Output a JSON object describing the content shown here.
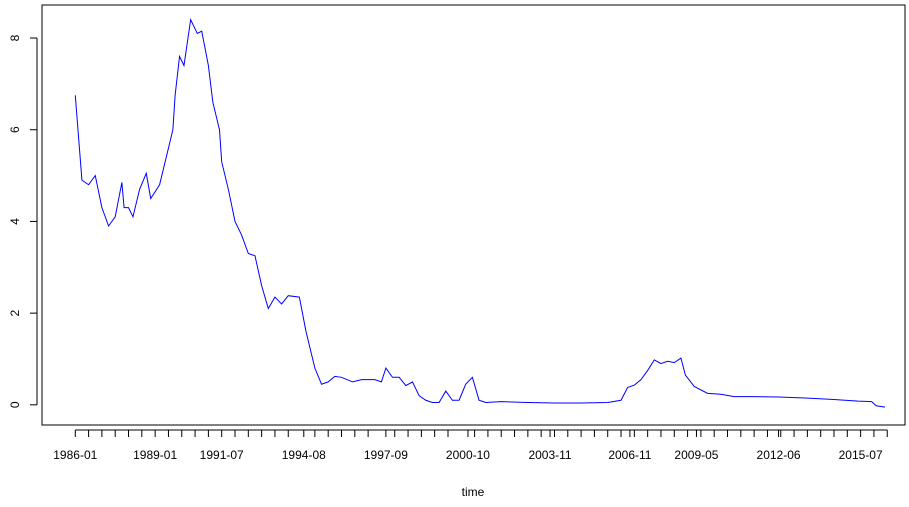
{
  "chart_data": {
    "type": "line",
    "x_label": "time",
    "color": "#0000ff",
    "xlim": [
      "1984-10",
      "2017-03"
    ],
    "ylim": [
      -0.44,
      8.72
    ],
    "yticks": [
      0,
      2,
      4,
      6,
      8
    ],
    "xticks": [
      "1986-01",
      "1989-01",
      "1991-07",
      "1994-08",
      "1997-09",
      "2000-10",
      "2003-11",
      "2006-11",
      "2009-05",
      "2012-06",
      "2015-07"
    ],
    "xminorticks": [
      "1986-07",
      "1987-01",
      "1987-07",
      "1988-01",
      "1988-07",
      "1989-07",
      "1990-01",
      "1990-07",
      "1991-01",
      "1992-01",
      "1992-07",
      "1993-01",
      "1993-07",
      "1994-01",
      "1995-01",
      "1995-07",
      "1996-01",
      "1996-07",
      "1997-01",
      "1998-01",
      "1998-07",
      "1999-01",
      "1999-07",
      "2000-01",
      "2001-01",
      "2001-07",
      "2002-01",
      "2002-07",
      "2003-01",
      "2003-07",
      "2004-01",
      "2004-07",
      "2005-01",
      "2005-07",
      "2006-01",
      "2006-07",
      "2007-01",
      "2007-07",
      "2008-01",
      "2008-07",
      "2009-01",
      "2009-07",
      "2010-01",
      "2010-07",
      "2011-01",
      "2011-07",
      "2012-01",
      "2012-07",
      "2013-01",
      "2013-07",
      "2014-01",
      "2014-07",
      "2015-01",
      "2016-01",
      "2016-07"
    ],
    "x": [
      "1986-01",
      "1986-04",
      "1986-07",
      "1986-10",
      "1987-01",
      "1987-04",
      "1987-07",
      "1987-10",
      "1987-11",
      "1988-01",
      "1988-03",
      "1988-06",
      "1988-09",
      "1988-11",
      "1989-03",
      "1989-06",
      "1989-09",
      "1989-10",
      "1989-12",
      "1990-02",
      "1990-05",
      "1990-08",
      "1990-10",
      "1991-01",
      "1991-03",
      "1991-06",
      "1991-07",
      "1991-10",
      "1992-01",
      "1992-04",
      "1992-07",
      "1992-10",
      "1993-01",
      "1993-04",
      "1993-07",
      "1993-10",
      "1994-01",
      "1994-06",
      "1994-09",
      "1995-01",
      "1995-04",
      "1995-07",
      "1995-10",
      "1996-01",
      "1996-06",
      "1996-10",
      "1997-04",
      "1997-07",
      "1997-09",
      "1997-12",
      "1998-03",
      "1998-06",
      "1998-09",
      "1998-12",
      "1999-03",
      "1999-06",
      "1999-09",
      "1999-12",
      "2000-03",
      "2000-06",
      "2000-09",
      "2000-12",
      "2001-03",
      "2001-06",
      "2002-01",
      "2003-01",
      "2004-01",
      "2005-01",
      "2006-01",
      "2006-07",
      "2006-10",
      "2007-01",
      "2007-04",
      "2007-07",
      "2007-10",
      "2008-01",
      "2008-04",
      "2008-07",
      "2008-10",
      "2008-12",
      "2009-04",
      "2009-10",
      "2010-04",
      "2010-10",
      "2011-06",
      "2012-06",
      "2013-06",
      "2014-06",
      "2015-06",
      "2015-12",
      "2016-02",
      "2016-06"
    ],
    "values": [
      6.75,
      4.9,
      4.8,
      5.0,
      4.3,
      3.9,
      4.1,
      4.85,
      4.3,
      4.3,
      4.1,
      4.7,
      5.05,
      4.5,
      4.8,
      5.4,
      6.0,
      6.75,
      7.6,
      7.4,
      8.4,
      8.1,
      8.15,
      7.4,
      6.6,
      6.0,
      5.3,
      4.7,
      4.0,
      3.7,
      3.3,
      3.25,
      2.6,
      2.1,
      2.35,
      2.2,
      2.38,
      2.35,
      1.6,
      0.8,
      0.45,
      0.5,
      0.62,
      0.6,
      0.5,
      0.55,
      0.55,
      0.5,
      0.8,
      0.6,
      0.6,
      0.42,
      0.5,
      0.2,
      0.1,
      0.05,
      0.05,
      0.3,
      0.1,
      0.1,
      0.45,
      0.6,
      0.1,
      0.05,
      0.07,
      0.05,
      0.04,
      0.04,
      0.05,
      0.1,
      0.38,
      0.43,
      0.55,
      0.75,
      0.98,
      0.9,
      0.95,
      0.92,
      1.02,
      0.65,
      0.4,
      0.25,
      0.23,
      0.18,
      0.18,
      0.17,
      0.15,
      0.12,
      0.08,
      0.07,
      -0.02,
      -0.05
    ]
  }
}
